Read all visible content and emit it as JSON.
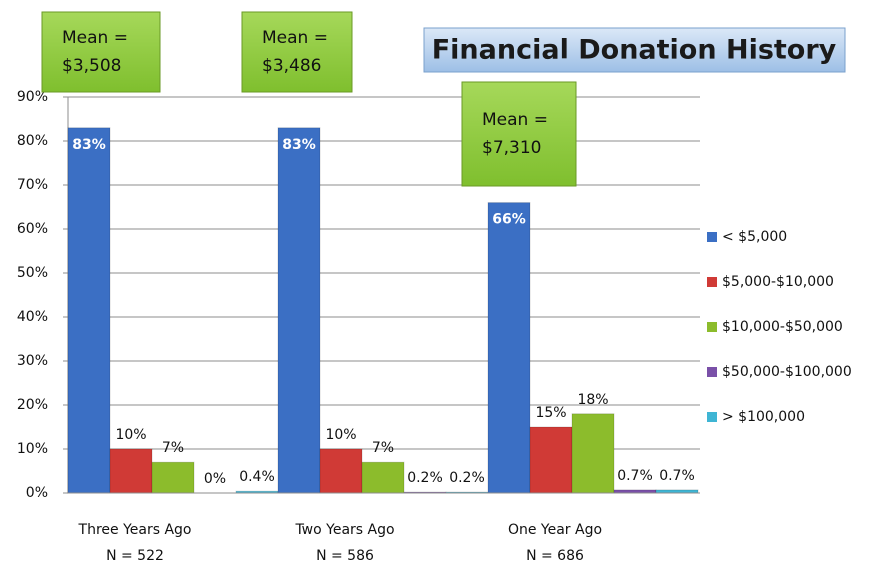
{
  "chart_data": {
    "type": "bar",
    "title": "Financial Donation History",
    "categories": [
      "Three Years Ago",
      "Two Years Ago",
      "One Year Ago"
    ],
    "category_notes": [
      "N = 522",
      "N = 586",
      "N = 686"
    ],
    "series": [
      {
        "name": "< $5,000",
        "color": "#3b6fc4",
        "values": [
          83,
          83,
          66
        ],
        "value_labels": [
          "83%",
          "83%",
          "66%"
        ]
      },
      {
        "name": "$5,000-$10,000",
        "color": "#d03a36",
        "values": [
          10,
          10,
          15
        ],
        "value_labels": [
          "10%",
          "10%",
          "15%"
        ]
      },
      {
        "name": "$10,000-$50,000",
        "color": "#8cbc2c",
        "values": [
          7,
          7,
          18
        ],
        "value_labels": [
          "7%",
          "7%",
          "18%"
        ]
      },
      {
        "name": "$50,000-$100,000",
        "color": "#7a50a8",
        "values": [
          0,
          0.2,
          0.7
        ],
        "value_labels": [
          "0%",
          "0.2%",
          "0.7%"
        ]
      },
      {
        "name": "> $100,000",
        "color": "#3fb5d4",
        "values": [
          0.4,
          0.2,
          0.7
        ],
        "value_labels": [
          "0.4%",
          "0.2%",
          "0.7%"
        ]
      }
    ],
    "annotations": [
      {
        "label": "Mean =",
        "value": "$3,508"
      },
      {
        "label": "Mean =",
        "value": "$3,486"
      },
      {
        "label": "Mean =",
        "value": "$7,310"
      }
    ],
    "ylim": [
      0,
      90
    ],
    "yticks": [
      {
        "value": 0,
        "label": "0%"
      },
      {
        "value": 10,
        "label": "10%"
      },
      {
        "value": 20,
        "label": "20%"
      },
      {
        "value": 30,
        "label": "30%"
      },
      {
        "value": 40,
        "label": "40%"
      },
      {
        "value": 50,
        "label": "50%"
      },
      {
        "value": 60,
        "label": "60%"
      },
      {
        "value": 70,
        "label": "70%"
      },
      {
        "value": 80,
        "label": "80%"
      },
      {
        "value": 90,
        "label": "90%"
      }
    ],
    "grid": true,
    "legend": "right"
  }
}
